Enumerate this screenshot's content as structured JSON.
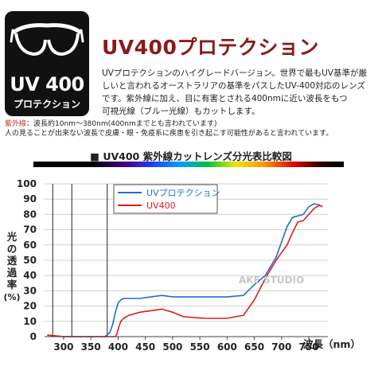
{
  "badge": {
    "uv": "UV 400",
    "sub": "プロテクション"
  },
  "headline": "UV400プロテクション",
  "body_lines": [
    "UVプロテクションのハイグレードバージョン。世界で最もUV基準が厳",
    "しいと言われるオーストラリアの基準をパスしたUV-400対応のレンズ",
    "です。紫外線に加え、目に有害とされる400nmに近い波長をもつ",
    "可視光線（ブルー光線）もカットします。"
  ],
  "uv_def": {
    "key": "紫外線",
    "value": "：波長約10nm〜380nm(400nmまでとも言われています)",
    "line2": "人の見ることが出来ない波長で皮膚・眼・免疫系に疾患を引き起こす可能性があると言われています。"
  },
  "chart_title": "■ UV400 紫外線カットレンズ分光表比較図",
  "watermark": "AKE STUDIO",
  "colors": {
    "blue": "#1f6fd1",
    "red": "#e01b1b",
    "brand": "#8b1a1a"
  },
  "chart_data": {
    "type": "line",
    "xlabel": "波長（nm）",
    "ylabel": "光の透過率(%)",
    "ylabel_chars": [
      "光",
      "の",
      "透",
      "過",
      "率"
    ],
    "ylabel_unit": "(%)",
    "xlim": [
      265,
      785
    ],
    "ylim": [
      0,
      100
    ],
    "x_ticks": [
      300,
      350,
      400,
      450,
      500,
      550,
      600,
      650,
      700,
      750
    ],
    "y_ticks": [
      0,
      10,
      20,
      30,
      40,
      50,
      60,
      70,
      80,
      90,
      100
    ],
    "vlines": [
      280,
      315,
      380
    ],
    "legend_position": "top-center",
    "series": [
      {
        "name": "UVプロテクション",
        "color": "#1f6fd1",
        "x": [
          270,
          300,
          320,
          340,
          360,
          375,
          380,
          385,
          390,
          395,
          400,
          405,
          410,
          420,
          440,
          460,
          480,
          500,
          520,
          560,
          600,
          630,
          650,
          670,
          690,
          700,
          710,
          720,
          730,
          740,
          750,
          760,
          770,
          775
        ],
        "y": [
          1,
          0,
          0,
          0,
          0,
          0,
          1,
          3,
          8,
          16,
          22,
          24,
          25,
          25,
          25,
          26,
          27,
          26,
          26,
          26,
          26,
          27,
          34,
          40,
          52,
          62,
          72,
          78,
          79,
          80,
          85,
          87,
          86,
          85
        ]
      },
      {
        "name": "UV400",
        "color": "#e01b1b",
        "x": [
          270,
          300,
          340,
          380,
          395,
          398,
          401,
          405,
          410,
          420,
          440,
          460,
          480,
          500,
          520,
          560,
          600,
          630,
          650,
          670,
          690,
          700,
          710,
          720,
          730,
          740,
          750,
          760,
          770,
          775
        ],
        "y": [
          1,
          0,
          0,
          0,
          0,
          2,
          6,
          10,
          12,
          14,
          16,
          17,
          18,
          16,
          13,
          12,
          12,
          14,
          24,
          38,
          50,
          55,
          60,
          68,
          75,
          76,
          80,
          84,
          86,
          85
        ]
      }
    ]
  }
}
